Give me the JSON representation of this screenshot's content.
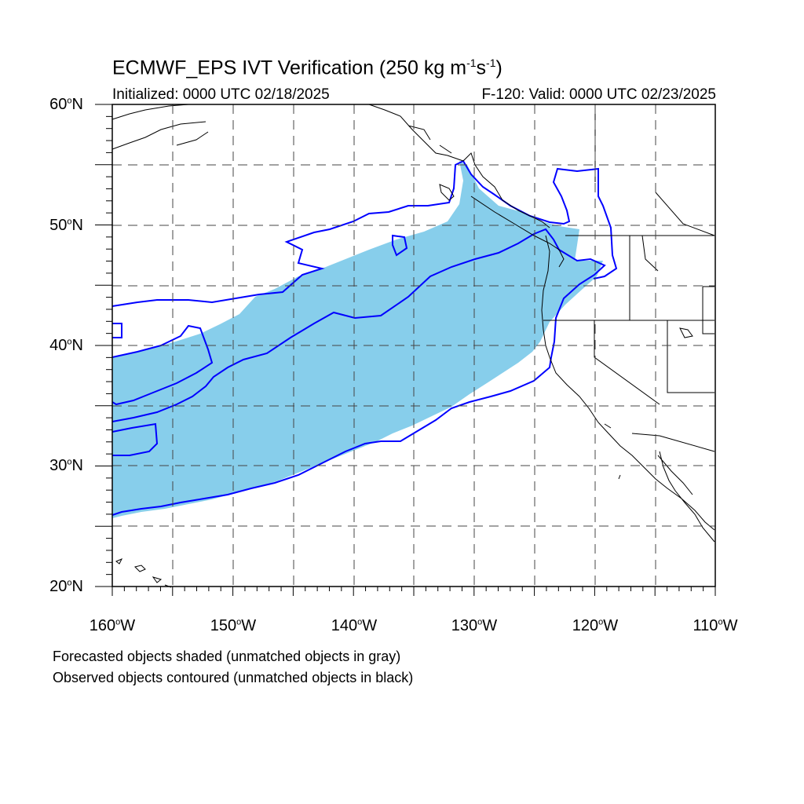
{
  "header": {
    "title_main": "ECMWF_EPS IVT Verification (250 kg m",
    "title_sup1": "-1",
    "title_mid": "s",
    "title_sup2": "-1",
    "title_end": ")",
    "initialized": "Initialized: 0000 UTC 02/18/2025",
    "valid": "F-120: Valid: 0000 UTC 02/23/2025"
  },
  "axes": {
    "lat_labels": [
      {
        "num": "60",
        "deg": "o",
        "hem": "N"
      },
      {
        "num": "50",
        "deg": "o",
        "hem": "N"
      },
      {
        "num": "40",
        "deg": "o",
        "hem": "N"
      },
      {
        "num": "30",
        "deg": "o",
        "hem": "N"
      },
      {
        "num": "20",
        "deg": "o",
        "hem": "N"
      }
    ],
    "lon_labels": [
      {
        "num": "160",
        "deg": "o",
        "hem": "W"
      },
      {
        "num": "150",
        "deg": "o",
        "hem": "W"
      },
      {
        "num": "140",
        "deg": "o",
        "hem": "W"
      },
      {
        "num": "130",
        "deg": "o",
        "hem": "W"
      },
      {
        "num": "120",
        "deg": "o",
        "hem": "W"
      },
      {
        "num": "110",
        "deg": "o",
        "hem": "W"
      }
    ]
  },
  "legend": {
    "forecast_note": "Forecasted objects shaded (unmatched objects in gray)",
    "observed_note": "Observed objects contoured (unmatched objects in black)"
  },
  "colors": {
    "forecast_fill": "#87ceeb",
    "observed_contour": "#0000ff",
    "coastline": "#000000"
  }
}
